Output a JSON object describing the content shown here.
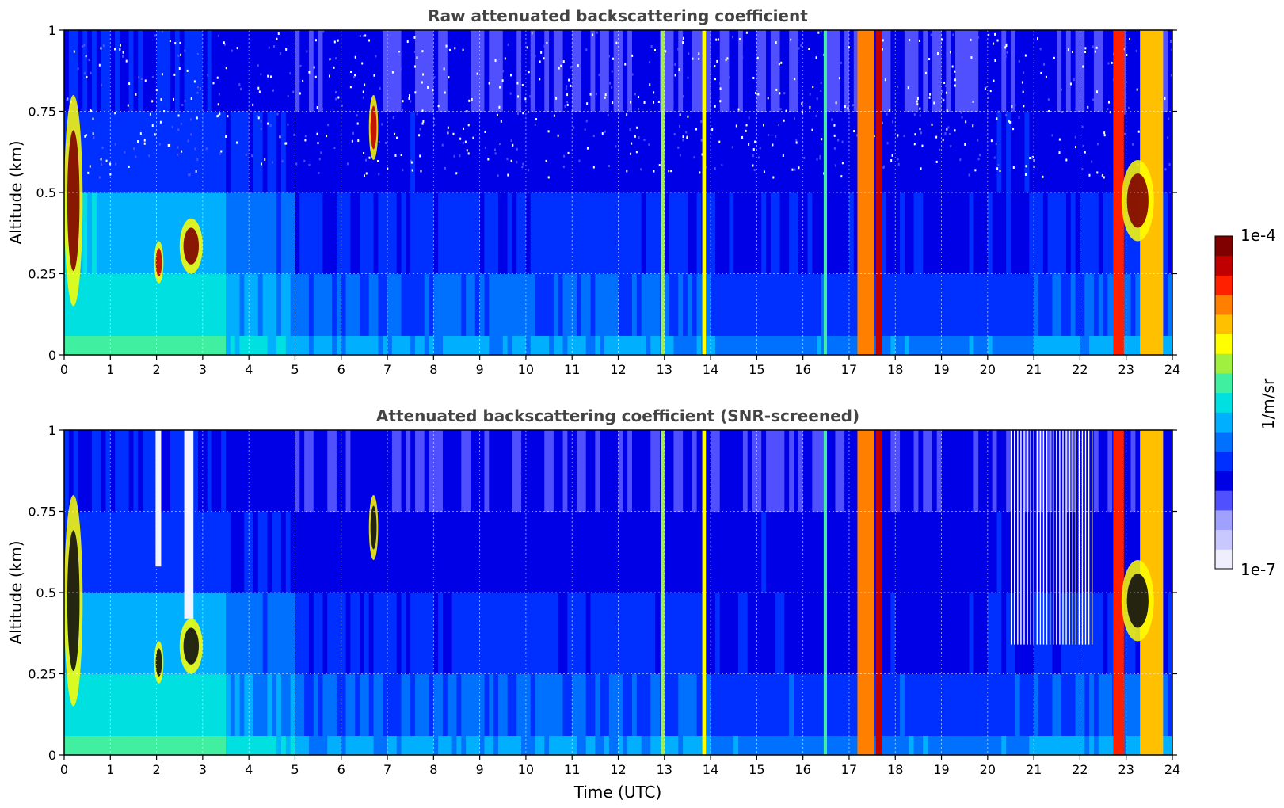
{
  "chart_data": [
    {
      "type": "heatmap",
      "title": "Raw attenuated backscattering coefficient",
      "xlabel": "",
      "ylabel": "Altitude (km)",
      "xlim": [
        0,
        24
      ],
      "ylim": [
        0,
        1
      ],
      "x_ticks": [
        "0",
        "1",
        "2",
        "3",
        "4",
        "5",
        "6",
        "7",
        "8",
        "9",
        "10",
        "11",
        "12",
        "13",
        "14",
        "15",
        "16",
        "17",
        "18",
        "19",
        "20",
        "21",
        "22",
        "23",
        "24"
      ],
      "y_ticks": [
        "0",
        "0.25",
        "0.5",
        "0.75",
        "1"
      ],
      "grid": true,
      "cloud_features": [
        {
          "t_start": 0.0,
          "t_end": 0.4,
          "alt_low": 0.15,
          "alt_high": 0.8,
          "level": 0.95
        },
        {
          "t_start": 1.95,
          "t_end": 2.15,
          "alt_low": 0.22,
          "alt_high": 0.35,
          "level": 0.92
        },
        {
          "t_start": 2.5,
          "t_end": 3.0,
          "alt_low": 0.25,
          "alt_high": 0.42,
          "level": 0.95
        },
        {
          "t_start": 6.6,
          "t_end": 6.8,
          "alt_low": 0.6,
          "alt_high": 0.8,
          "level": 0.9
        },
        {
          "t_start": 22.9,
          "t_end": 23.6,
          "alt_low": 0.35,
          "alt_high": 0.6,
          "level": 0.95
        }
      ],
      "precip_columns": [
        {
          "t_start": 12.93,
          "t_end": 13.0,
          "level": 0.6
        },
        {
          "t_start": 13.82,
          "t_end": 13.9,
          "level": 0.7
        },
        {
          "t_start": 16.45,
          "t_end": 16.52,
          "level": 0.55
        },
        {
          "t_start": 17.18,
          "t_end": 17.55,
          "level": 0.78
        },
        {
          "t_start": 17.58,
          "t_end": 17.72,
          "level": 0.9
        },
        {
          "t_start": 22.72,
          "t_end": 22.95,
          "level": 0.85
        },
        {
          "t_start": 23.3,
          "t_end": 23.8,
          "level": 0.75
        }
      ]
    },
    {
      "type": "heatmap",
      "title": "Attenuated backscattering coefficient (SNR-screened)",
      "xlabel": "Time (UTC)",
      "ylabel": "Altitude (km)",
      "xlim": [
        0,
        24
      ],
      "ylim": [
        0,
        1
      ],
      "x_ticks": [
        "0",
        "1",
        "2",
        "3",
        "4",
        "5",
        "6",
        "7",
        "8",
        "9",
        "10",
        "11",
        "12",
        "13",
        "14",
        "15",
        "16",
        "17",
        "18",
        "19",
        "20",
        "21",
        "22",
        "23",
        "24"
      ],
      "y_ticks": [
        "0",
        "0.25",
        "0.5",
        "0.75",
        "1"
      ],
      "grid": true,
      "masked_columns": [
        {
          "t_start": 1.98,
          "t_end": 2.1,
          "alt_low": 0.58,
          "alt_high": 1.0
        },
        {
          "t_start": 2.6,
          "t_end": 2.8,
          "alt_low": 0.42,
          "alt_high": 1.0
        },
        {
          "t_start": 20.5,
          "t_end": 22.3,
          "alt_low": 0.34,
          "alt_high": 1.0
        }
      ]
    }
  ],
  "colorbar": {
    "label": "1/m/sr",
    "max_label": "1e-4",
    "min_label": "1e-7",
    "colors": [
      "#eeeeff",
      "#c8c8ff",
      "#a0a0ff",
      "#5050ff",
      "#0000e6",
      "#0030ff",
      "#0070ff",
      "#00b0ff",
      "#00e0e0",
      "#40f0a0",
      "#a0f040",
      "#ffff00",
      "#ffc000",
      "#ff8000",
      "#ff2000",
      "#c00000",
      "#800000"
    ]
  }
}
